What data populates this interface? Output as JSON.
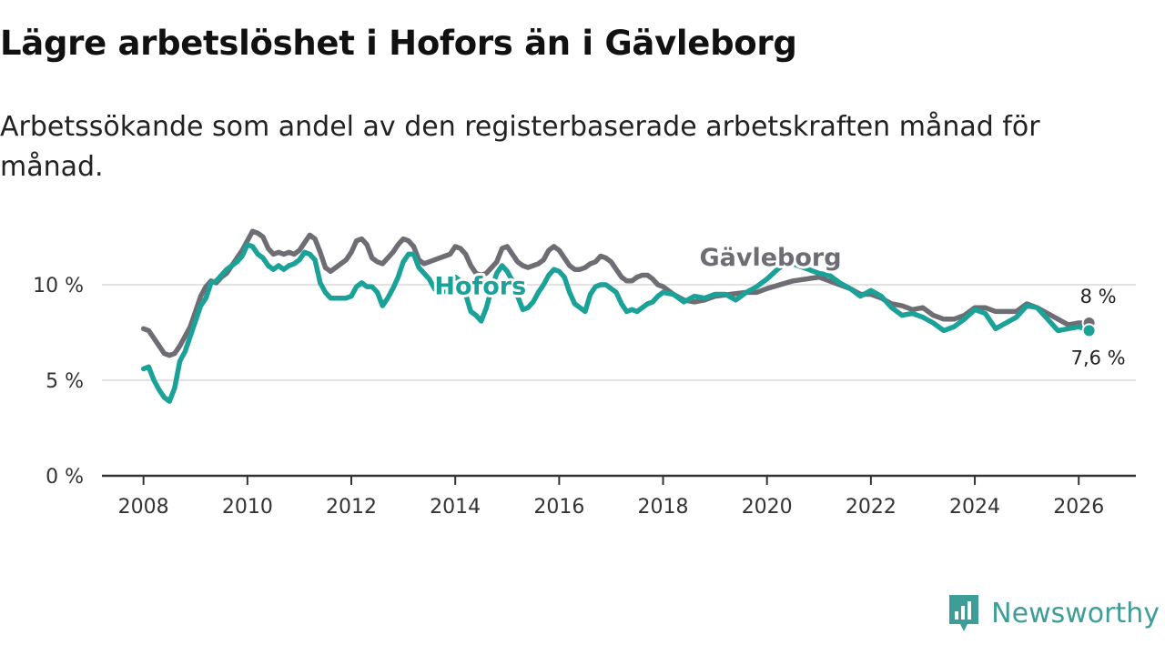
{
  "header": {
    "title": "Lägre arbetslöshet i Hofors än i Gävleborg",
    "subtitle": "Arbetssökande som andel av den registerbaserade arbetskraften månad för månad."
  },
  "brand": {
    "name": "Newsworthy",
    "color": "#3e9e97"
  },
  "chart_data": {
    "type": "line",
    "title": "Lägre arbetslöshet i Hofors än i Gävleborg",
    "subtitle": "Arbetssökande som andel av den registerbaserade arbetskraften månad för månad.",
    "xlabel": "",
    "ylabel": "",
    "xlim": [
      2007.2,
      2027.1
    ],
    "ylim": [
      0,
      13
    ],
    "x_ticks": [
      2008,
      2010,
      2012,
      2014,
      2016,
      2018,
      2020,
      2022,
      2024,
      2026
    ],
    "x_tick_labels": [
      "2008",
      "2010",
      "2012",
      "2014",
      "2016",
      "2018",
      "2020",
      "2022",
      "2024",
      "2026"
    ],
    "y_ticks": [
      0,
      5,
      10
    ],
    "y_tick_labels": [
      "0 %",
      "5 %",
      "10 %"
    ],
    "grid": true,
    "series": [
      {
        "name": "Gävleborg",
        "label": "Gävleborg",
        "color": "#6e6d74",
        "end_label": "8 %",
        "points": [
          [
            2008.0,
            7.7
          ],
          [
            2008.1,
            7.6
          ],
          [
            2008.2,
            7.2
          ],
          [
            2008.3,
            6.8
          ],
          [
            2008.4,
            6.4
          ],
          [
            2008.5,
            6.3
          ],
          [
            2008.6,
            6.4
          ],
          [
            2008.7,
            6.8
          ],
          [
            2008.8,
            7.3
          ],
          [
            2008.9,
            7.8
          ],
          [
            2009.0,
            8.6
          ],
          [
            2009.1,
            9.4
          ],
          [
            2009.2,
            9.9
          ],
          [
            2009.3,
            10.2
          ],
          [
            2009.4,
            10.1
          ],
          [
            2009.5,
            10.4
          ],
          [
            2009.6,
            10.6
          ],
          [
            2009.7,
            11.0
          ],
          [
            2009.8,
            11.4
          ],
          [
            2009.9,
            11.8
          ],
          [
            2010.0,
            12.3
          ],
          [
            2010.1,
            12.8
          ],
          [
            2010.2,
            12.7
          ],
          [
            2010.3,
            12.5
          ],
          [
            2010.4,
            11.9
          ],
          [
            2010.5,
            11.6
          ],
          [
            2010.6,
            11.7
          ],
          [
            2010.7,
            11.6
          ],
          [
            2010.8,
            11.7
          ],
          [
            2010.9,
            11.6
          ],
          [
            2011.0,
            11.8
          ],
          [
            2011.1,
            12.2
          ],
          [
            2011.2,
            12.6
          ],
          [
            2011.3,
            12.4
          ],
          [
            2011.4,
            11.7
          ],
          [
            2011.5,
            10.9
          ],
          [
            2011.6,
            10.7
          ],
          [
            2011.7,
            10.9
          ],
          [
            2011.8,
            11.1
          ],
          [
            2011.9,
            11.3
          ],
          [
            2012.0,
            11.7
          ],
          [
            2012.1,
            12.3
          ],
          [
            2012.2,
            12.4
          ],
          [
            2012.3,
            12.1
          ],
          [
            2012.4,
            11.4
          ],
          [
            2012.5,
            11.2
          ],
          [
            2012.6,
            11.1
          ],
          [
            2012.7,
            11.4
          ],
          [
            2012.8,
            11.7
          ],
          [
            2012.9,
            12.1
          ],
          [
            2013.0,
            12.4
          ],
          [
            2013.1,
            12.3
          ],
          [
            2013.2,
            12.0
          ],
          [
            2013.3,
            11.3
          ],
          [
            2013.4,
            11.1
          ],
          [
            2013.5,
            11.2
          ],
          [
            2013.6,
            11.3
          ],
          [
            2013.7,
            11.4
          ],
          [
            2013.8,
            11.5
          ],
          [
            2013.9,
            11.6
          ],
          [
            2014.0,
            12.0
          ],
          [
            2014.1,
            11.9
          ],
          [
            2014.2,
            11.6
          ],
          [
            2014.3,
            11.0
          ],
          [
            2014.4,
            10.6
          ],
          [
            2014.5,
            10.5
          ],
          [
            2014.6,
            10.6
          ],
          [
            2014.7,
            10.9
          ],
          [
            2014.8,
            11.2
          ],
          [
            2014.9,
            11.9
          ],
          [
            2015.0,
            12.0
          ],
          [
            2015.1,
            11.6
          ],
          [
            2015.2,
            11.2
          ],
          [
            2015.3,
            11.0
          ],
          [
            2015.4,
            10.9
          ],
          [
            2015.5,
            11.0
          ],
          [
            2015.6,
            11.1
          ],
          [
            2015.7,
            11.3
          ],
          [
            2015.8,
            11.8
          ],
          [
            2015.9,
            12.0
          ],
          [
            2016.0,
            11.8
          ],
          [
            2016.1,
            11.4
          ],
          [
            2016.2,
            11.0
          ],
          [
            2016.3,
            10.8
          ],
          [
            2016.4,
            10.8
          ],
          [
            2016.5,
            10.9
          ],
          [
            2016.6,
            11.1
          ],
          [
            2016.7,
            11.2
          ],
          [
            2016.8,
            11.5
          ],
          [
            2016.9,
            11.4
          ],
          [
            2017.0,
            11.2
          ],
          [
            2017.1,
            10.8
          ],
          [
            2017.2,
            10.4
          ],
          [
            2017.3,
            10.2
          ],
          [
            2017.4,
            10.2
          ],
          [
            2017.5,
            10.4
          ],
          [
            2017.6,
            10.5
          ],
          [
            2017.7,
            10.5
          ],
          [
            2017.8,
            10.3
          ],
          [
            2017.9,
            10.0
          ],
          [
            2018.0,
            9.9
          ],
          [
            2018.2,
            9.5
          ],
          [
            2018.4,
            9.2
          ],
          [
            2018.6,
            9.1
          ],
          [
            2018.8,
            9.2
          ],
          [
            2019.0,
            9.4
          ],
          [
            2019.3,
            9.5
          ],
          [
            2019.6,
            9.6
          ],
          [
            2019.8,
            9.6
          ],
          [
            2020.0,
            9.8
          ],
          [
            2020.5,
            10.2
          ],
          [
            2021.0,
            10.4
          ],
          [
            2021.2,
            10.2
          ],
          [
            2021.4,
            10.0
          ],
          [
            2021.6,
            9.8
          ],
          [
            2021.8,
            9.5
          ],
          [
            2022.0,
            9.5
          ],
          [
            2022.2,
            9.3
          ],
          [
            2022.4,
            9.0
          ],
          [
            2022.6,
            8.9
          ],
          [
            2022.8,
            8.7
          ],
          [
            2023.0,
            8.8
          ],
          [
            2023.2,
            8.4
          ],
          [
            2023.4,
            8.2
          ],
          [
            2023.6,
            8.2
          ],
          [
            2023.8,
            8.4
          ],
          [
            2024.0,
            8.8
          ],
          [
            2024.2,
            8.8
          ],
          [
            2024.4,
            8.6
          ],
          [
            2024.6,
            8.6
          ],
          [
            2024.8,
            8.6
          ],
          [
            2025.0,
            9.0
          ],
          [
            2025.2,
            8.8
          ],
          [
            2025.4,
            8.5
          ],
          [
            2025.6,
            8.2
          ],
          [
            2025.8,
            7.9
          ],
          [
            2026.0,
            8.0
          ],
          [
            2026.2,
            8.0
          ]
        ]
      },
      {
        "name": "Hofors",
        "label": "Hofors",
        "color": "#1aa198",
        "end_label": "7,6 %",
        "points": [
          [
            2008.0,
            5.6
          ],
          [
            2008.1,
            5.7
          ],
          [
            2008.2,
            5.0
          ],
          [
            2008.3,
            4.5
          ],
          [
            2008.4,
            4.1
          ],
          [
            2008.5,
            3.9
          ],
          [
            2008.6,
            4.6
          ],
          [
            2008.7,
            6.0
          ],
          [
            2008.8,
            6.5
          ],
          [
            2008.9,
            7.3
          ],
          [
            2009.0,
            8.1
          ],
          [
            2009.1,
            8.9
          ],
          [
            2009.2,
            9.3
          ],
          [
            2009.3,
            10.1
          ],
          [
            2009.4,
            10.2
          ],
          [
            2009.5,
            10.5
          ],
          [
            2009.6,
            10.8
          ],
          [
            2009.7,
            11.0
          ],
          [
            2009.8,
            11.2
          ],
          [
            2009.9,
            11.5
          ],
          [
            2010.0,
            12.1
          ],
          [
            2010.1,
            12.0
          ],
          [
            2010.2,
            11.6
          ],
          [
            2010.3,
            11.4
          ],
          [
            2010.4,
            11.0
          ],
          [
            2010.5,
            10.8
          ],
          [
            2010.6,
            11.0
          ],
          [
            2010.7,
            10.8
          ],
          [
            2010.8,
            11.0
          ],
          [
            2010.9,
            11.1
          ],
          [
            2011.0,
            11.3
          ],
          [
            2011.1,
            11.7
          ],
          [
            2011.2,
            11.6
          ],
          [
            2011.3,
            11.3
          ],
          [
            2011.4,
            10.1
          ],
          [
            2011.5,
            9.6
          ],
          [
            2011.6,
            9.3
          ],
          [
            2011.7,
            9.3
          ],
          [
            2011.8,
            9.3
          ],
          [
            2011.9,
            9.3
          ],
          [
            2012.0,
            9.4
          ],
          [
            2012.1,
            9.9
          ],
          [
            2012.2,
            10.1
          ],
          [
            2012.3,
            9.9
          ],
          [
            2012.4,
            9.9
          ],
          [
            2012.5,
            9.6
          ],
          [
            2012.6,
            8.9
          ],
          [
            2012.7,
            9.3
          ],
          [
            2012.8,
            9.8
          ],
          [
            2012.9,
            10.4
          ],
          [
            2013.0,
            11.2
          ],
          [
            2013.1,
            11.6
          ],
          [
            2013.2,
            11.6
          ],
          [
            2013.3,
            10.9
          ],
          [
            2013.4,
            10.6
          ],
          [
            2013.5,
            10.3
          ],
          [
            2013.6,
            9.8
          ],
          [
            2013.7,
            9.5
          ],
          [
            2013.8,
            9.7
          ],
          [
            2013.9,
            10.0
          ],
          [
            2014.0,
            10.4
          ],
          [
            2014.1,
            10.2
          ],
          [
            2014.2,
            9.5
          ],
          [
            2014.3,
            8.6
          ],
          [
            2014.4,
            8.4
          ],
          [
            2014.5,
            8.1
          ],
          [
            2014.6,
            8.8
          ],
          [
            2014.7,
            9.8
          ],
          [
            2014.8,
            10.6
          ],
          [
            2014.9,
            11.0
          ],
          [
            2015.0,
            10.7
          ],
          [
            2015.1,
            10.2
          ],
          [
            2015.2,
            9.4
          ],
          [
            2015.3,
            8.7
          ],
          [
            2015.4,
            8.8
          ],
          [
            2015.5,
            9.1
          ],
          [
            2015.6,
            9.6
          ],
          [
            2015.7,
            10.0
          ],
          [
            2015.8,
            10.5
          ],
          [
            2015.9,
            10.8
          ],
          [
            2016.0,
            10.7
          ],
          [
            2016.1,
            10.4
          ],
          [
            2016.2,
            9.6
          ],
          [
            2016.3,
            9.0
          ],
          [
            2016.4,
            8.8
          ],
          [
            2016.5,
            8.6
          ],
          [
            2016.6,
            9.5
          ],
          [
            2016.7,
            9.9
          ],
          [
            2016.8,
            10.0
          ],
          [
            2016.9,
            10.0
          ],
          [
            2017.0,
            9.8
          ],
          [
            2017.1,
            9.6
          ],
          [
            2017.2,
            9.0
          ],
          [
            2017.3,
            8.6
          ],
          [
            2017.4,
            8.7
          ],
          [
            2017.5,
            8.6
          ],
          [
            2017.6,
            8.8
          ],
          [
            2017.7,
            9.0
          ],
          [
            2017.8,
            9.1
          ],
          [
            2017.9,
            9.4
          ],
          [
            2018.0,
            9.6
          ],
          [
            2018.2,
            9.5
          ],
          [
            2018.4,
            9.1
          ],
          [
            2018.6,
            9.4
          ],
          [
            2018.8,
            9.3
          ],
          [
            2019.0,
            9.5
          ],
          [
            2019.2,
            9.5
          ],
          [
            2019.4,
            9.2
          ],
          [
            2019.6,
            9.6
          ],
          [
            2019.8,
            9.9
          ],
          [
            2020.0,
            10.3
          ],
          [
            2020.2,
            10.8
          ],
          [
            2020.4,
            11.2
          ],
          [
            2020.6,
            11.0
          ],
          [
            2020.8,
            10.8
          ],
          [
            2021.0,
            10.6
          ],
          [
            2021.2,
            10.5
          ],
          [
            2021.4,
            10.1
          ],
          [
            2021.6,
            9.8
          ],
          [
            2021.8,
            9.4
          ],
          [
            2022.0,
            9.7
          ],
          [
            2022.2,
            9.4
          ],
          [
            2022.4,
            8.8
          ],
          [
            2022.6,
            8.4
          ],
          [
            2022.8,
            8.5
          ],
          [
            2023.0,
            8.3
          ],
          [
            2023.2,
            8.0
          ],
          [
            2023.4,
            7.6
          ],
          [
            2023.6,
            7.8
          ],
          [
            2023.8,
            8.2
          ],
          [
            2024.0,
            8.7
          ],
          [
            2024.2,
            8.5
          ],
          [
            2024.4,
            7.7
          ],
          [
            2024.6,
            8.0
          ],
          [
            2024.8,
            8.3
          ],
          [
            2025.0,
            8.9
          ],
          [
            2025.2,
            8.8
          ],
          [
            2025.4,
            8.2
          ],
          [
            2025.6,
            7.6
          ],
          [
            2025.8,
            7.7
          ],
          [
            2026.0,
            7.8
          ],
          [
            2026.2,
            7.6
          ]
        ]
      }
    ]
  }
}
